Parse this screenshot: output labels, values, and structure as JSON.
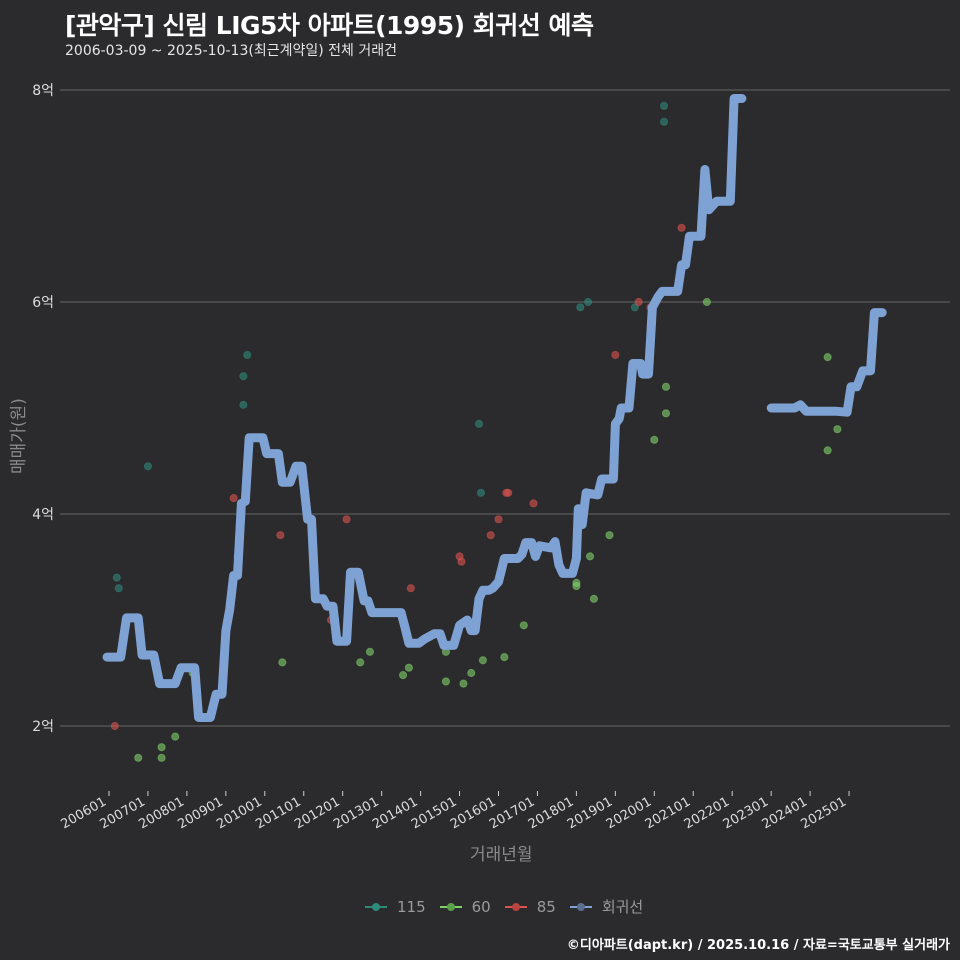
{
  "header": {
    "title": "[관악구] 신림 LIG5차 아파트(1995) 회귀선 예측",
    "subtitle": "2006-03-09 ~ 2025-10-13(최근계약일) 전체 거래건"
  },
  "footer": {
    "credit": "©디아파트(dapt.kr) / 2025.10.16 / 자료=국토교통부 실거래가"
  },
  "colors": {
    "background": "#2b2a2c",
    "grid": "#5a5a5a",
    "series_115": "#2f8a7a",
    "series_60": "#7fd06a",
    "series_85": "#d9534f",
    "regression": "#7ea2d4"
  },
  "chart_data": {
    "type": "scatter",
    "title": "[관악구] 신림 LIG5차 아파트(1995) 회귀선 예측",
    "subtitle": "2006-03-09 ~ 2025-10-13(최근계약일) 전체 거래건",
    "xlabel": "거래년월",
    "ylabel": "매매가(원)",
    "x_ticks": [
      "200601",
      "200701",
      "200801",
      "200901",
      "201001",
      "201101",
      "201201",
      "201301",
      "201401",
      "201501",
      "201601",
      "201701",
      "201801",
      "201901",
      "202001",
      "202101",
      "202201",
      "202301",
      "202401",
      "202501"
    ],
    "y_ticks": [
      "2억",
      "4억",
      "6억",
      "8억"
    ],
    "y_tick_values": [
      2,
      4,
      6,
      8
    ],
    "ylim": [
      1.4,
      8.2
    ],
    "xlim": [
      2005.55,
      2026.2
    ],
    "grid": "horizontal",
    "legend_position": "bottom",
    "legend": [
      "115",
      "60",
      "85",
      "회귀선"
    ],
    "units": "억원",
    "series": [
      {
        "name": "115",
        "kind": "points",
        "points": [
          [
            2006.2,
            3.4
          ],
          [
            2006.25,
            3.3
          ],
          [
            2007.0,
            4.45
          ],
          [
            2009.55,
            5.5
          ],
          [
            2009.45,
            5.3
          ],
          [
            2009.45,
            5.03
          ],
          [
            2015.5,
            4.85
          ],
          [
            2015.55,
            4.2
          ],
          [
            2018.1,
            5.95
          ],
          [
            2018.3,
            6.0
          ],
          [
            2019.5,
            5.95
          ],
          [
            2020.25,
            7.85
          ],
          [
            2020.25,
            7.7
          ]
        ]
      },
      {
        "name": "60",
        "kind": "points",
        "points": [
          [
            2006.75,
            1.7
          ],
          [
            2007.35,
            1.8
          ],
          [
            2007.35,
            1.7
          ],
          [
            2007.7,
            1.9
          ],
          [
            2008.15,
            2.5
          ],
          [
            2010.45,
            2.6
          ],
          [
            2012.45,
            2.6
          ],
          [
            2012.7,
            2.7
          ],
          [
            2013.55,
            2.48
          ],
          [
            2013.7,
            2.55
          ],
          [
            2014.65,
            2.7
          ],
          [
            2014.65,
            2.42
          ],
          [
            2015.1,
            2.4
          ],
          [
            2015.3,
            2.5
          ],
          [
            2015.6,
            2.62
          ],
          [
            2016.15,
            2.65
          ],
          [
            2016.65,
            2.95
          ],
          [
            2018.0,
            3.35
          ],
          [
            2018.0,
            3.32
          ],
          [
            2018.35,
            3.6
          ],
          [
            2018.45,
            3.2
          ],
          [
            2018.85,
            3.8
          ],
          [
            2020.0,
            4.7
          ],
          [
            2020.3,
            4.95
          ],
          [
            2020.3,
            5.2
          ],
          [
            2021.35,
            6.0
          ],
          [
            2024.45,
            5.48
          ],
          [
            2024.7,
            4.8
          ],
          [
            2024.45,
            4.6
          ]
        ]
      },
      {
        "name": "85",
        "kind": "points",
        "points": [
          [
            2006.15,
            2.0
          ],
          [
            2009.2,
            4.15
          ],
          [
            2009.3,
            3.6
          ],
          [
            2010.4,
            3.8
          ],
          [
            2011.7,
            3.0
          ],
          [
            2012.1,
            3.95
          ],
          [
            2013.75,
            3.3
          ],
          [
            2015.0,
            3.6
          ],
          [
            2015.05,
            3.55
          ],
          [
            2015.8,
            3.8
          ],
          [
            2016.0,
            3.95
          ],
          [
            2016.2,
            4.2
          ],
          [
            2016.25,
            4.2
          ],
          [
            2016.9,
            4.1
          ],
          [
            2019.0,
            5.5
          ],
          [
            2019.6,
            6.0
          ],
          [
            2019.9,
            5.95
          ],
          [
            2020.7,
            6.7
          ]
        ]
      },
      {
        "name": "회귀선",
        "kind": "line",
        "points": [
          [
            2005.95,
            2.65
          ],
          [
            2006.3,
            2.65
          ],
          [
            2006.45,
            3.02
          ],
          [
            2006.75,
            3.02
          ],
          [
            2006.85,
            2.67
          ],
          [
            2007.15,
            2.67
          ],
          [
            2007.3,
            2.4
          ],
          [
            2007.7,
            2.4
          ],
          [
            2007.85,
            2.55
          ],
          [
            2008.2,
            2.55
          ],
          [
            2008.3,
            2.08
          ],
          [
            2008.6,
            2.08
          ],
          [
            2008.75,
            2.3
          ],
          [
            2008.9,
            2.3
          ],
          [
            2009.0,
            2.9
          ],
          [
            2009.1,
            3.1
          ],
          [
            2009.2,
            3.42
          ],
          [
            2009.3,
            3.42
          ],
          [
            2009.4,
            4.1
          ],
          [
            2009.5,
            4.12
          ],
          [
            2009.6,
            4.72
          ],
          [
            2009.95,
            4.72
          ],
          [
            2010.05,
            4.57
          ],
          [
            2010.35,
            4.57
          ],
          [
            2010.45,
            4.3
          ],
          [
            2010.65,
            4.3
          ],
          [
            2010.8,
            4.45
          ],
          [
            2010.95,
            4.45
          ],
          [
            2011.1,
            3.95
          ],
          [
            2011.2,
            3.95
          ],
          [
            2011.3,
            3.2
          ],
          [
            2011.5,
            3.2
          ],
          [
            2011.6,
            3.13
          ],
          [
            2011.75,
            3.13
          ],
          [
            2011.85,
            2.8
          ],
          [
            2012.1,
            2.8
          ],
          [
            2012.2,
            3.45
          ],
          [
            2012.4,
            3.45
          ],
          [
            2012.55,
            3.18
          ],
          [
            2012.65,
            3.18
          ],
          [
            2012.75,
            3.07
          ],
          [
            2013.05,
            3.07
          ],
          [
            2013.15,
            3.07
          ],
          [
            2013.5,
            3.07
          ],
          [
            2013.6,
            2.93
          ],
          [
            2013.7,
            2.78
          ],
          [
            2013.95,
            2.78
          ],
          [
            2014.1,
            2.82
          ],
          [
            2014.35,
            2.87
          ],
          [
            2014.5,
            2.87
          ],
          [
            2014.6,
            2.76
          ],
          [
            2014.85,
            2.76
          ],
          [
            2015.0,
            2.95
          ],
          [
            2015.2,
            3.0
          ],
          [
            2015.3,
            2.9
          ],
          [
            2015.4,
            2.9
          ],
          [
            2015.5,
            3.2
          ],
          [
            2015.6,
            3.28
          ],
          [
            2015.75,
            3.28
          ],
          [
            2015.85,
            3.3
          ],
          [
            2016.0,
            3.36
          ],
          [
            2016.15,
            3.58
          ],
          [
            2016.5,
            3.58
          ],
          [
            2016.6,
            3.62
          ],
          [
            2016.7,
            3.73
          ],
          [
            2016.85,
            3.73
          ],
          [
            2016.95,
            3.6
          ],
          [
            2017.05,
            3.7
          ],
          [
            2017.35,
            3.68
          ],
          [
            2017.45,
            3.74
          ],
          [
            2017.55,
            3.52
          ],
          [
            2017.65,
            3.44
          ],
          [
            2017.9,
            3.44
          ],
          [
            2018.0,
            3.58
          ],
          [
            2018.05,
            4.05
          ],
          [
            2018.15,
            3.9
          ],
          [
            2018.25,
            4.2
          ],
          [
            2018.55,
            4.18
          ],
          [
            2018.65,
            4.33
          ],
          [
            2018.95,
            4.33
          ],
          [
            2019.0,
            4.85
          ],
          [
            2019.1,
            4.9
          ],
          [
            2019.15,
            5.0
          ],
          [
            2019.35,
            5.0
          ],
          [
            2019.45,
            5.42
          ],
          [
            2019.65,
            5.42
          ],
          [
            2019.7,
            5.32
          ],
          [
            2019.85,
            5.32
          ],
          [
            2019.95,
            5.95
          ],
          [
            2020.1,
            6.05
          ],
          [
            2020.2,
            6.1
          ],
          [
            2020.6,
            6.1
          ],
          [
            2020.7,
            6.35
          ],
          [
            2020.8,
            6.35
          ],
          [
            2020.9,
            6.62
          ],
          [
            2021.2,
            6.62
          ],
          [
            2021.3,
            7.25
          ],
          [
            2021.4,
            6.87
          ],
          [
            2021.6,
            6.95
          ],
          [
            2021.95,
            6.95
          ],
          [
            2022.05,
            7.92
          ],
          [
            2022.25,
            7.92
          ]
        ]
      },
      {
        "name": "회귀선",
        "kind": "line",
        "points": [
          [
            2023.0,
            5.0
          ],
          [
            2023.6,
            5.0
          ],
          [
            2023.75,
            5.03
          ],
          [
            2023.9,
            4.97
          ],
          [
            2024.4,
            4.97
          ],
          [
            2024.65,
            4.97
          ],
          [
            2024.95,
            4.96
          ],
          [
            2025.05,
            5.2
          ],
          [
            2025.2,
            5.2
          ],
          [
            2025.35,
            5.35
          ],
          [
            2025.55,
            5.35
          ],
          [
            2025.65,
            5.9
          ],
          [
            2025.85,
            5.9
          ]
        ]
      }
    ]
  },
  "axis": {
    "xlabel": "거래년월",
    "ylabel": "매매가(원)"
  },
  "legend": {
    "items": [
      {
        "label": "115",
        "color": "#2f8a7a"
      },
      {
        "label": "60",
        "color": "#7fd06a"
      },
      {
        "label": "85",
        "color": "#d9534f"
      },
      {
        "label": "회귀선",
        "color": "#7ea2d4"
      }
    ]
  }
}
